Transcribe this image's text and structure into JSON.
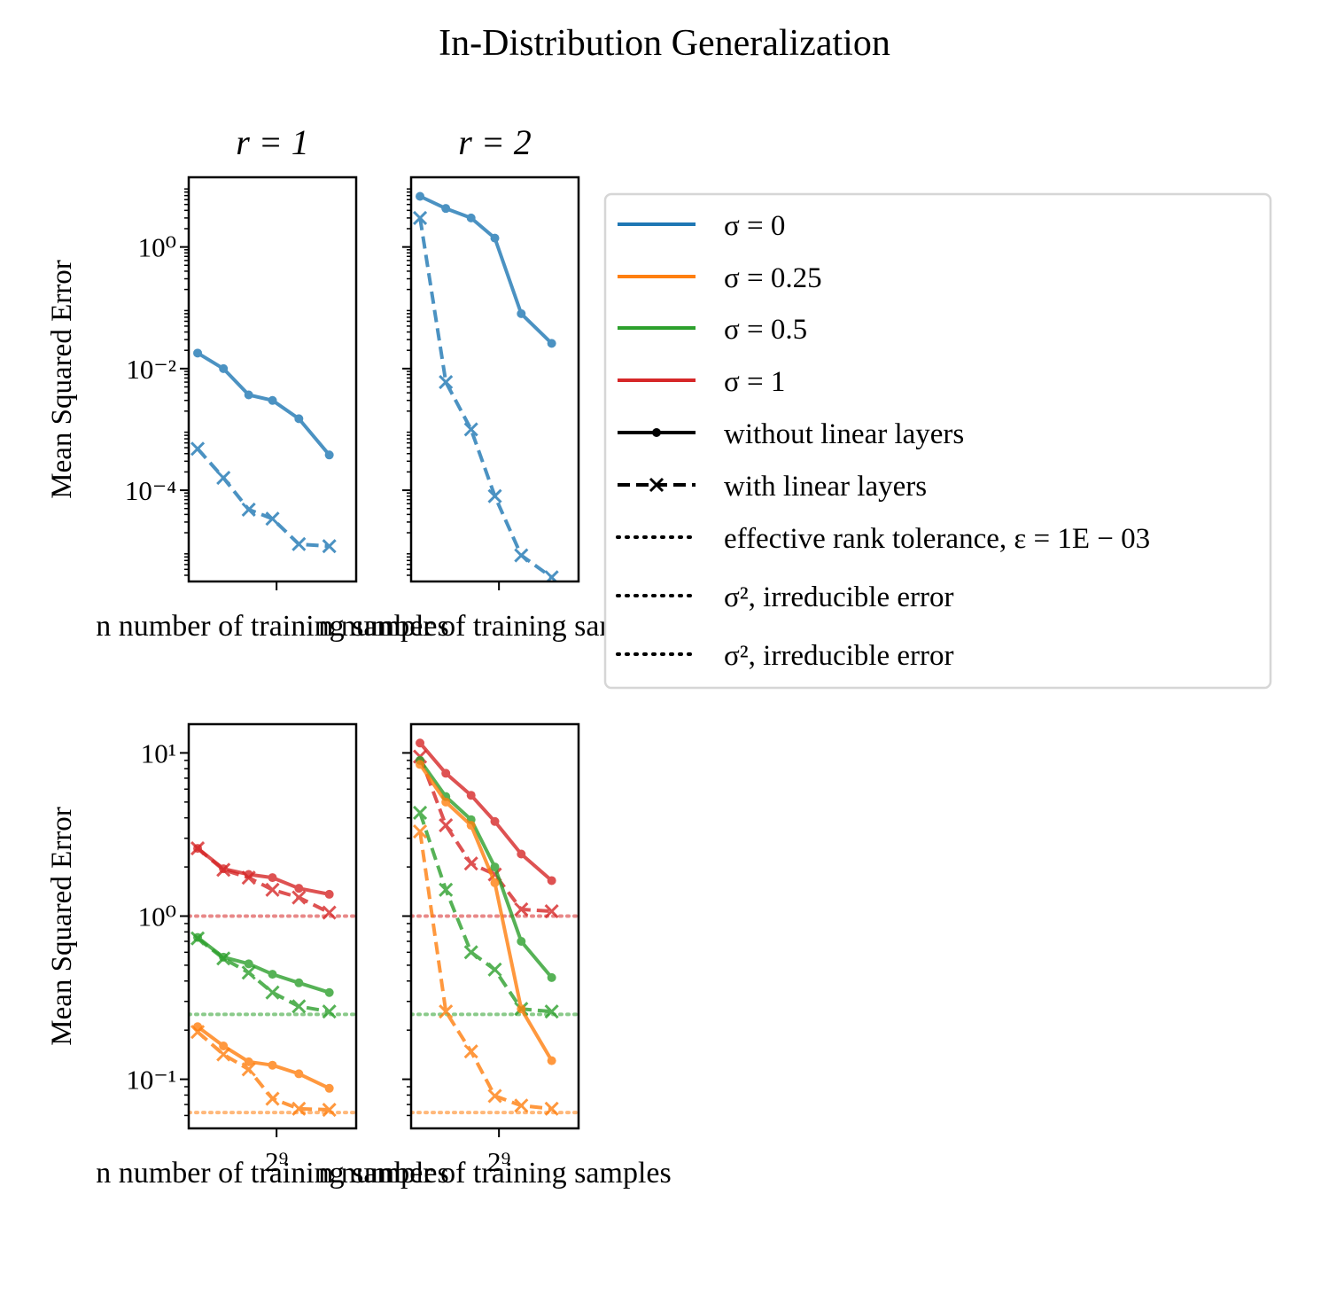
{
  "figure": {
    "title": "In-Distribution Generalization"
  },
  "legend": {
    "placement": "right",
    "entries": [
      {
        "label": "σ = 0",
        "style": "solid",
        "color": "#1f77b4",
        "marker": "none"
      },
      {
        "label": "σ = 0.25",
        "style": "solid",
        "color": "#ff7f0e",
        "marker": "none"
      },
      {
        "label": "σ = 0.5",
        "style": "solid",
        "color": "#2ca02c",
        "marker": "none"
      },
      {
        "label": "σ = 1",
        "style": "solid",
        "color": "#d62728",
        "marker": "none"
      },
      {
        "label": "without linear layers",
        "style": "solid",
        "color": "#000000",
        "marker": "dot"
      },
      {
        "label": "with linear layers",
        "style": "dashed",
        "color": "#000000",
        "marker": "x"
      },
      {
        "label": "effective rank tolerance, ε = 1E − 03",
        "style": "dotted",
        "color": "#000000",
        "marker": "none"
      },
      {
        "label": "σ², irreducible error",
        "style": "dotted",
        "color": "#000000",
        "marker": "none"
      },
      {
        "label": "σ², irreducible error",
        "style": "dotted",
        "color": "#000000",
        "marker": "none"
      }
    ]
  },
  "chart_data": [
    {
      "type": "line",
      "title": "r = 1",
      "xlabel": "n number of training samples",
      "ylabel": "Mean Squared Error",
      "yscale": "log",
      "xscale": "log2",
      "ylim": [
        3.16e-06,
        14
      ],
      "xlim": [
        200,
        1200
      ],
      "yticks": [
        {
          "value": 1,
          "label": "10⁰"
        },
        {
          "value": 0.01,
          "label": "10⁻²"
        },
        {
          "value": 0.0001,
          "label": "10⁻⁴"
        }
      ],
      "xticks": [
        {
          "value": 512,
          "label": ""
        }
      ],
      "series": [
        {
          "noise": "σ = 0",
          "color": "#1f77b4",
          "linear_layers": false,
          "x": [
            220,
            290,
            380,
            490,
            650,
            900
          ],
          "y": [
            0.018,
            0.01,
            0.0037,
            0.003,
            0.0015,
            0.00038
          ]
        },
        {
          "noise": "σ = 0",
          "color": "#1f77b4",
          "linear_layers": true,
          "x": [
            220,
            290,
            380,
            490,
            650,
            900
          ],
          "y": [
            0.00048,
            0.00016,
            4.8e-05,
            3.4e-05,
            1.3e-05,
            1.2e-05
          ]
        }
      ],
      "hlines": []
    },
    {
      "type": "line",
      "title": "r = 2",
      "xlabel": "n number of training samples",
      "ylabel": "",
      "yscale": "log",
      "xscale": "log2",
      "ylim": [
        3.16e-06,
        14
      ],
      "xlim": [
        200,
        1200
      ],
      "yticks": [
        {
          "value": 1,
          "label": ""
        },
        {
          "value": 0.01,
          "label": ""
        },
        {
          "value": 0.0001,
          "label": ""
        }
      ],
      "xticks": [
        {
          "value": 512,
          "label": ""
        }
      ],
      "series": [
        {
          "noise": "σ = 0",
          "color": "#1f77b4",
          "linear_layers": false,
          "x": [
            220,
            290,
            380,
            490,
            650,
            900
          ],
          "y": [
            6.8,
            4.3,
            3.0,
            1.4,
            0.08,
            0.026
          ]
        },
        {
          "noise": "σ = 0",
          "color": "#1f77b4",
          "linear_layers": true,
          "x": [
            220,
            290,
            380,
            490,
            650,
            900
          ],
          "y": [
            3.0,
            0.006,
            0.001,
            8e-05,
            8.5e-06,
            3.7e-06
          ]
        }
      ],
      "hlines": []
    },
    {
      "type": "line",
      "title": "",
      "xlabel": "n number of training samples",
      "ylabel": "Mean Squared Error",
      "yscale": "log",
      "xscale": "log2",
      "ylim": [
        0.05,
        15
      ],
      "xlim": [
        200,
        1200
      ],
      "yticks": [
        {
          "value": 10,
          "label": "10¹"
        },
        {
          "value": 1,
          "label": "10⁰"
        },
        {
          "value": 0.1,
          "label": "10⁻¹"
        }
      ],
      "xticks": [
        {
          "value": 512,
          "label": "2⁹"
        }
      ],
      "series": [
        {
          "noise": "σ = 1",
          "color": "#d62728",
          "linear_layers": false,
          "x": [
            220,
            290,
            380,
            490,
            650,
            900
          ],
          "y": [
            2.6,
            1.95,
            1.8,
            1.72,
            1.48,
            1.36
          ]
        },
        {
          "noise": "σ = 1",
          "color": "#d62728",
          "linear_layers": true,
          "x": [
            220,
            290,
            380,
            490,
            650,
            900
          ],
          "y": [
            2.6,
            1.92,
            1.72,
            1.45,
            1.3,
            1.05
          ]
        },
        {
          "noise": "σ = 0.5",
          "color": "#2ca02c",
          "linear_layers": false,
          "x": [
            220,
            290,
            380,
            490,
            650,
            900
          ],
          "y": [
            0.74,
            0.56,
            0.51,
            0.44,
            0.39,
            0.34
          ]
        },
        {
          "noise": "σ = 0.5",
          "color": "#2ca02c",
          "linear_layers": true,
          "x": [
            220,
            290,
            380,
            490,
            650,
            900
          ],
          "y": [
            0.73,
            0.55,
            0.45,
            0.34,
            0.28,
            0.26
          ]
        },
        {
          "noise": "σ = 0.25",
          "color": "#ff7f0e",
          "linear_layers": false,
          "x": [
            220,
            290,
            380,
            490,
            650,
            900
          ],
          "y": [
            0.21,
            0.16,
            0.128,
            0.122,
            0.108,
            0.088
          ]
        },
        {
          "noise": "σ = 0.25",
          "color": "#ff7f0e",
          "linear_layers": true,
          "x": [
            220,
            290,
            380,
            490,
            650,
            900
          ],
          "y": [
            0.195,
            0.142,
            0.115,
            0.076,
            0.066,
            0.065
          ]
        }
      ],
      "hlines": [
        {
          "y": 1.0,
          "color": "#d62728"
        },
        {
          "y": 0.25,
          "color": "#2ca02c"
        },
        {
          "y": 0.0625,
          "color": "#ff7f0e"
        }
      ]
    },
    {
      "type": "line",
      "title": "",
      "xlabel": "n number of training samples",
      "ylabel": "",
      "yscale": "log",
      "xscale": "log2",
      "ylim": [
        0.05,
        15
      ],
      "xlim": [
        200,
        1200
      ],
      "yticks": [
        {
          "value": 10,
          "label": ""
        },
        {
          "value": 1,
          "label": ""
        },
        {
          "value": 0.1,
          "label": ""
        }
      ],
      "xticks": [
        {
          "value": 512,
          "label": "2⁹"
        }
      ],
      "series": [
        {
          "noise": "σ = 1",
          "color": "#d62728",
          "linear_layers": false,
          "x": [
            220,
            290,
            380,
            490,
            650,
            900
          ],
          "y": [
            11.5,
            7.5,
            5.5,
            3.8,
            2.4,
            1.65
          ]
        },
        {
          "noise": "σ = 1",
          "color": "#d62728",
          "linear_layers": true,
          "x": [
            220,
            290,
            380,
            490,
            650,
            900
          ],
          "y": [
            9.5,
            3.6,
            2.1,
            1.8,
            1.1,
            1.07
          ]
        },
        {
          "noise": "σ = 0.5",
          "color": "#2ca02c",
          "linear_layers": false,
          "x": [
            220,
            290,
            380,
            490,
            650,
            900
          ],
          "y": [
            9.0,
            5.4,
            3.9,
            2.0,
            0.7,
            0.42
          ]
        },
        {
          "noise": "σ = 0.5",
          "color": "#2ca02c",
          "linear_layers": true,
          "x": [
            220,
            290,
            380,
            490,
            650,
            900
          ],
          "y": [
            4.3,
            1.45,
            0.6,
            0.47,
            0.27,
            0.26
          ]
        },
        {
          "noise": "σ = 0.25",
          "color": "#ff7f0e",
          "linear_layers": false,
          "x": [
            220,
            290,
            380,
            490,
            650,
            900
          ],
          "y": [
            8.5,
            5.0,
            3.6,
            1.6,
            0.27,
            0.13
          ]
        },
        {
          "noise": "σ = 0.25",
          "color": "#ff7f0e",
          "linear_layers": true,
          "x": [
            220,
            290,
            380,
            490,
            650,
            900
          ],
          "y": [
            3.3,
            0.26,
            0.148,
            0.079,
            0.069,
            0.066
          ]
        }
      ],
      "hlines": [
        {
          "y": 1.0,
          "color": "#d62728"
        },
        {
          "y": 0.25,
          "color": "#2ca02c"
        },
        {
          "y": 0.0625,
          "color": "#ff7f0e"
        }
      ]
    }
  ]
}
